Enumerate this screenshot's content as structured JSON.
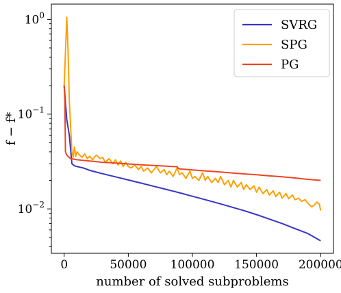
{
  "chart_data": {
    "type": "line",
    "title": "",
    "xlabel": "number of solved subproblems",
    "ylabel": "f − f*",
    "yscale": "log",
    "xlim": [
      -10000,
      210000
    ],
    "ylim": [
      0.0034,
      1.45
    ],
    "xticks": [
      {
        "value": 0,
        "label": "0"
      },
      {
        "value": 50000,
        "label": "50000"
      },
      {
        "value": 100000,
        "label": "100000"
      },
      {
        "value": 150000,
        "label": "150000"
      },
      {
        "value": 200000,
        "label": "200000"
      }
    ],
    "yticks": [
      {
        "value": 1,
        "base": "10",
        "exp": "0"
      },
      {
        "value": 0.1,
        "base": "10",
        "exp": "−1"
      },
      {
        "value": 0.01,
        "base": "10",
        "exp": "−2"
      }
    ],
    "grid": false,
    "legend_position": "top-right",
    "series": [
      {
        "name": "SVRG",
        "color": "#3535c8",
        "points": [
          [
            0,
            0.2
          ],
          [
            2000,
            0.088
          ],
          [
            4000,
            0.06
          ],
          [
            6000,
            0.03
          ],
          [
            8000,
            0.0285
          ],
          [
            10000,
            0.028
          ],
          [
            15000,
            0.027
          ],
          [
            20000,
            0.0255
          ],
          [
            30000,
            0.0235
          ],
          [
            40000,
            0.0218
          ],
          [
            50000,
            0.0202
          ],
          [
            60000,
            0.0187
          ],
          [
            70000,
            0.0173
          ],
          [
            80000,
            0.016
          ],
          [
            90000,
            0.0148
          ],
          [
            100000,
            0.0136
          ],
          [
            110000,
            0.0125
          ],
          [
            120000,
            0.0115
          ],
          [
            130000,
            0.0105
          ],
          [
            140000,
            0.0096
          ],
          [
            150000,
            0.0087
          ],
          [
            160000,
            0.0078
          ],
          [
            170000,
            0.007
          ],
          [
            180000,
            0.0062
          ],
          [
            190000,
            0.0055
          ],
          [
            200000,
            0.0046
          ]
        ]
      },
      {
        "name": "SPG",
        "color": "#ffa000",
        "points": [
          [
            0,
            0.2
          ],
          [
            1000,
            0.45
          ],
          [
            2000,
            1.05
          ],
          [
            3000,
            0.5
          ],
          [
            4000,
            0.14
          ],
          [
            5000,
            0.075
          ],
          [
            6000,
            0.04
          ],
          [
            7000,
            0.035
          ],
          [
            8000,
            0.045
          ],
          [
            9000,
            0.036
          ],
          [
            10000,
            0.04
          ],
          [
            12000,
            0.037
          ],
          [
            14000,
            0.035
          ],
          [
            16000,
            0.038
          ],
          [
            18000,
            0.034
          ],
          [
            20000,
            0.036
          ],
          [
            22000,
            0.033
          ],
          [
            25000,
            0.037
          ],
          [
            28000,
            0.034
          ],
          [
            30000,
            0.035
          ],
          [
            32000,
            0.031
          ],
          [
            35000,
            0.034
          ],
          [
            38000,
            0.03
          ],
          [
            40000,
            0.033
          ],
          [
            42000,
            0.029
          ],
          [
            44000,
            0.032
          ],
          [
            46000,
            0.028
          ],
          [
            48000,
            0.031
          ],
          [
            50000,
            0.028
          ],
          [
            52000,
            0.027
          ],
          [
            55000,
            0.029
          ],
          [
            58000,
            0.026
          ],
          [
            60000,
            0.028
          ],
          [
            62000,
            0.025
          ],
          [
            65000,
            0.027
          ],
          [
            68000,
            0.024
          ],
          [
            70000,
            0.026
          ],
          [
            72000,
            0.028
          ],
          [
            75000,
            0.024
          ],
          [
            78000,
            0.026
          ],
          [
            80000,
            0.023
          ],
          [
            82000,
            0.025
          ],
          [
            85000,
            0.022
          ],
          [
            88000,
            0.027
          ],
          [
            90000,
            0.023
          ],
          [
            92000,
            0.024
          ],
          [
            95000,
            0.021
          ],
          [
            98000,
            0.025
          ],
          [
            100000,
            0.021
          ],
          [
            102000,
            0.022
          ],
          [
            105000,
            0.02
          ],
          [
            108000,
            0.024
          ],
          [
            110000,
            0.02
          ],
          [
            112000,
            0.022
          ],
          [
            115000,
            0.019
          ],
          [
            118000,
            0.021
          ],
          [
            120000,
            0.019
          ],
          [
            122000,
            0.022
          ],
          [
            125000,
            0.018
          ],
          [
            128000,
            0.02
          ],
          [
            130000,
            0.017
          ],
          [
            132000,
            0.02
          ],
          [
            135000,
            0.017
          ],
          [
            138000,
            0.019
          ],
          [
            140000,
            0.016
          ],
          [
            142000,
            0.018
          ],
          [
            145000,
            0.016
          ],
          [
            148000,
            0.0175
          ],
          [
            150000,
            0.015
          ],
          [
            152000,
            0.017
          ],
          [
            155000,
            0.0145
          ],
          [
            158000,
            0.016
          ],
          [
            160000,
            0.014
          ],
          [
            163000,
            0.0155
          ],
          [
            165000,
            0.0135
          ],
          [
            168000,
            0.015
          ],
          [
            170000,
            0.013
          ],
          [
            173000,
            0.0145
          ],
          [
            175000,
            0.0128
          ],
          [
            178000,
            0.014
          ],
          [
            180000,
            0.0125
          ],
          [
            183000,
            0.013
          ],
          [
            185000,
            0.012
          ],
          [
            188000,
            0.0125
          ],
          [
            190000,
            0.0115
          ],
          [
            193000,
            0.0105
          ],
          [
            195000,
            0.011
          ],
          [
            197000,
            0.0118
          ],
          [
            199000,
            0.0112
          ],
          [
            200000,
            0.0096
          ]
        ]
      },
      {
        "name": "PG",
        "color": "#ee4422",
        "points": [
          [
            0,
            0.2
          ],
          [
            500,
            0.14
          ],
          [
            1000,
            0.04
          ],
          [
            2000,
            0.037
          ],
          [
            3000,
            0.036
          ],
          [
            5000,
            0.034
          ],
          [
            10000,
            0.033
          ],
          [
            20000,
            0.032
          ],
          [
            30000,
            0.031
          ],
          [
            40000,
            0.0305
          ],
          [
            50000,
            0.0298
          ],
          [
            60000,
            0.0292
          ],
          [
            70000,
            0.0287
          ],
          [
            80000,
            0.0282
          ],
          [
            88000,
            0.0279
          ],
          [
            89000,
            0.0268
          ],
          [
            90000,
            0.0264
          ],
          [
            100000,
            0.0258
          ],
          [
            110000,
            0.0252
          ],
          [
            120000,
            0.0246
          ],
          [
            130000,
            0.024
          ],
          [
            140000,
            0.0234
          ],
          [
            150000,
            0.0229
          ],
          [
            160000,
            0.0223
          ],
          [
            170000,
            0.0218
          ],
          [
            180000,
            0.0212
          ],
          [
            190000,
            0.0205
          ],
          [
            200000,
            0.02
          ]
        ]
      }
    ]
  }
}
